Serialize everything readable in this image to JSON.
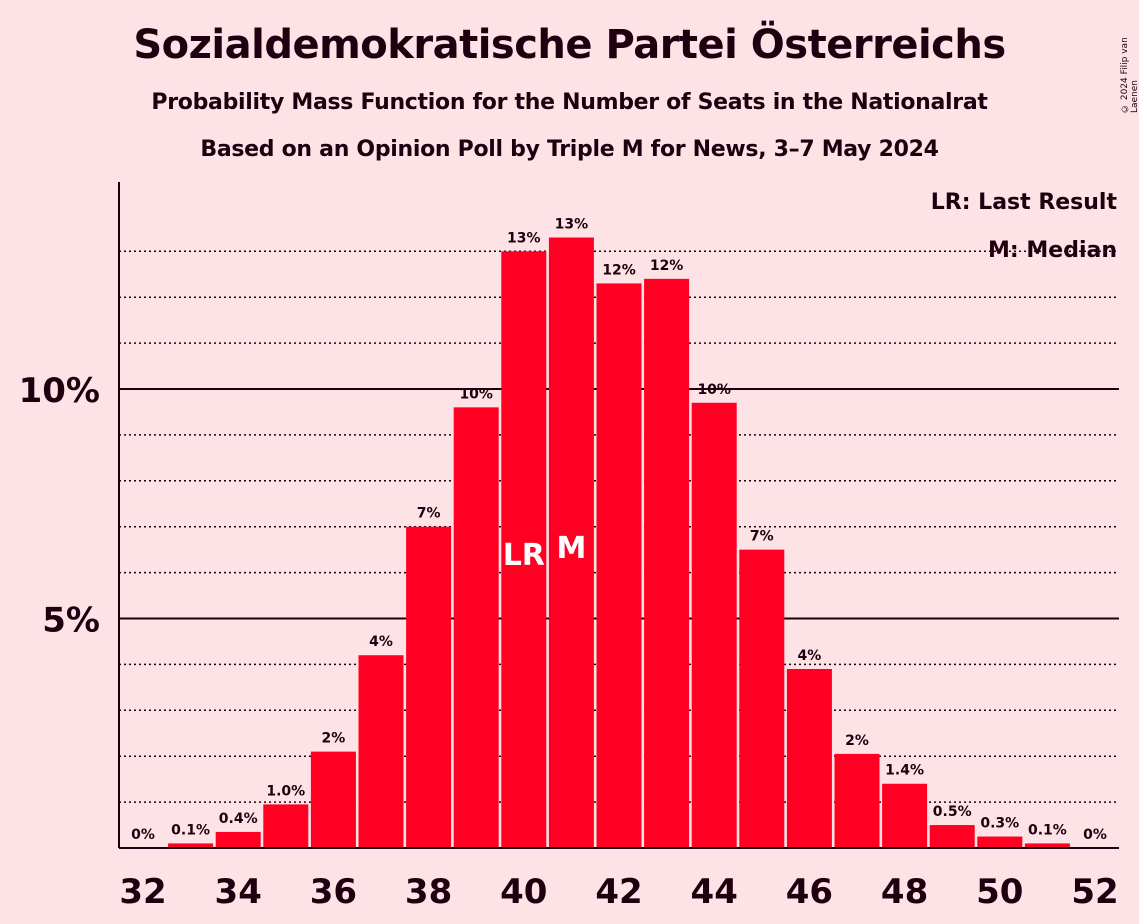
{
  "title": "Sozialdemokratische Partei Österreichs",
  "subtitle": "Probability Mass Function for the Number of Seats in the Nationalrat",
  "subtitle2": "Based on an Opinion Poll by Triple M for News, 3–7 May 2024",
  "copyright": "© 2024 Filip van Laenen",
  "legend": {
    "last_result": "LR: Last Result",
    "median": "M: Median"
  },
  "colors": {
    "bar": "#ff0022",
    "background": "#fde3e6",
    "text": "#200010"
  },
  "chart_data": {
    "type": "bar",
    "categories": [
      32,
      33,
      34,
      35,
      36,
      37,
      38,
      39,
      40,
      41,
      42,
      43,
      44,
      45,
      46,
      47,
      48,
      49,
      50,
      51,
      52
    ],
    "values": [
      0,
      0.1,
      0.35,
      0.95,
      2.1,
      4.2,
      7.0,
      9.6,
      13.0,
      13.3,
      12.3,
      12.4,
      9.7,
      6.5,
      3.9,
      2.05,
      1.4,
      0.5,
      0.25,
      0.1,
      0
    ],
    "data_labels": [
      "0%",
      "0.1%",
      "0.4%",
      "1.0%",
      "2%",
      "4%",
      "7%",
      "10%",
      "13%",
      "13%",
      "12%",
      "12%",
      "10%",
      "7%",
      "4%",
      "2%",
      "1.4%",
      "0.5%",
      "0.3%",
      "0.1%",
      "0%"
    ],
    "x_tick_labels": [
      "32",
      "34",
      "36",
      "38",
      "40",
      "42",
      "44",
      "46",
      "48",
      "50",
      "52"
    ],
    "y_tick_labels": [
      "5%",
      "10%"
    ],
    "y_ticks": [
      5,
      10
    ],
    "y_minor_ticks": [
      1,
      2,
      3,
      4,
      6,
      7,
      8,
      9,
      11,
      12,
      13
    ],
    "ylim": [
      0,
      14.5
    ],
    "last_result_seat": 40,
    "last_result_marker": "LR",
    "median_seat": 41,
    "median_marker": "M",
    "grid": true
  }
}
